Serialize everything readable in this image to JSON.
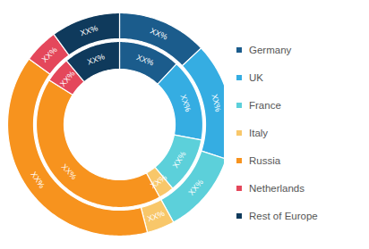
{
  "chart_data": {
    "type": "donut",
    "categories": [
      "Germany",
      "UK",
      "France",
      "Italy",
      "Russia",
      "Netherlands",
      "Rest of Europe"
    ],
    "colors": [
      "#1b5c8c",
      "#35ade2",
      "#5cd0da",
      "#f8c76a",
      "#f7931e",
      "#e4475b",
      "#0f3a5c"
    ],
    "series": [
      {
        "values": [
          12,
          16,
          11,
          3,
          42,
          5,
          11
        ],
        "value_labels": [
          "XX%",
          "XX%",
          "XX%",
          "XX%",
          "XX%",
          "XX%",
          "XX%"
        ]
      },
      {
        "values": [
          13,
          17,
          12,
          4,
          39,
          5,
          10
        ],
        "value_labels": [
          "XX%",
          "XX%",
          "XX%",
          "XX%",
          "XX%",
          "XX%",
          "XX%"
        ]
      }
    ],
    "data_labels": true,
    "legend": "right"
  }
}
